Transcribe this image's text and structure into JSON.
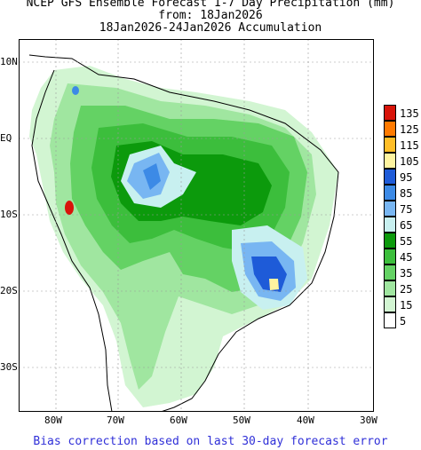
{
  "title": {
    "line1": "NCEP GFS Ensemble Forecast 1-7 Day Precipitation (mm)",
    "line2": "from: 18Jan2026",
    "line3": "18Jan2026-24Jan2026 Accumulation"
  },
  "footer": "Bias correction based on last 30-day forecast error",
  "lat_labels": [
    "10N",
    "EQ",
    "10S",
    "20S",
    "30S"
  ],
  "lon_labels": [
    "80W",
    "70W",
    "60W",
    "50W",
    "40W",
    "30W"
  ],
  "legend": {
    "levels": [
      "135",
      "125",
      "115",
      "105",
      "95",
      "85",
      "75",
      "65",
      "55",
      "45",
      "35",
      "25",
      "15",
      "5"
    ],
    "colors": [
      "#d8140a",
      "#ff7a00",
      "#ffbe28",
      "#fff4a0",
      "#1e5bd8",
      "#3c8ae6",
      "#78b6f2",
      "#c8f0f0",
      "#0c9a0c",
      "#3cbe3c",
      "#64d264",
      "#a0e6a0",
      "#d2f5d2",
      "#ffffff"
    ]
  }
}
